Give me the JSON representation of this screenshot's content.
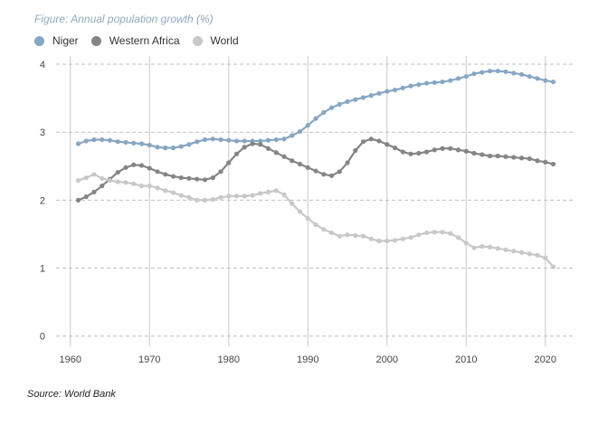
{
  "chart_data": {
    "type": "line",
    "title": "Figure: Annual population growth (%)",
    "source": "Source: World Bank",
    "xlim": [
      1961,
      2021
    ],
    "ylim": [
      0,
      4
    ],
    "x_ticks": [
      1960,
      1970,
      1980,
      1990,
      2000,
      2010,
      2020
    ],
    "y_ticks": [
      0,
      1,
      2,
      3,
      4
    ],
    "grid": true,
    "legend_position": "top-left",
    "x": [
      1961,
      1962,
      1963,
      1964,
      1965,
      1966,
      1967,
      1968,
      1969,
      1970,
      1971,
      1972,
      1973,
      1974,
      1975,
      1976,
      1977,
      1978,
      1979,
      1980,
      1981,
      1982,
      1983,
      1984,
      1985,
      1986,
      1987,
      1988,
      1989,
      1990,
      1991,
      1992,
      1993,
      1994,
      1995,
      1996,
      1997,
      1998,
      1999,
      2000,
      2001,
      2002,
      2003,
      2004,
      2005,
      2006,
      2007,
      2008,
      2009,
      2010,
      2011,
      2012,
      2013,
      2014,
      2015,
      2016,
      2017,
      2018,
      2019,
      2020,
      2021
    ],
    "series": [
      {
        "name": "Niger",
        "color": "#86a7c3",
        "values": [
          2.83,
          2.87,
          2.89,
          2.89,
          2.88,
          2.86,
          2.85,
          2.84,
          2.83,
          2.81,
          2.78,
          2.77,
          2.77,
          2.79,
          2.82,
          2.86,
          2.89,
          2.9,
          2.89,
          2.88,
          2.87,
          2.87,
          2.87,
          2.87,
          2.88,
          2.89,
          2.9,
          2.95,
          3.01,
          3.1,
          3.2,
          3.29,
          3.36,
          3.41,
          3.45,
          3.48,
          3.51,
          3.54,
          3.57,
          3.6,
          3.62,
          3.65,
          3.68,
          3.7,
          3.72,
          3.73,
          3.74,
          3.76,
          3.79,
          3.82,
          3.86,
          3.88,
          3.9,
          3.9,
          3.89,
          3.87,
          3.85,
          3.82,
          3.79,
          3.76,
          3.74
        ]
      },
      {
        "name": "Western Africa",
        "color": "#858585",
        "values": [
          2.0,
          2.05,
          2.12,
          2.21,
          2.31,
          2.41,
          2.48,
          2.52,
          2.51,
          2.47,
          2.42,
          2.38,
          2.35,
          2.33,
          2.32,
          2.31,
          2.3,
          2.33,
          2.42,
          2.55,
          2.68,
          2.78,
          2.83,
          2.82,
          2.76,
          2.7,
          2.64,
          2.58,
          2.53,
          2.48,
          2.43,
          2.38,
          2.36,
          2.42,
          2.55,
          2.73,
          2.86,
          2.9,
          2.87,
          2.82,
          2.77,
          2.71,
          2.68,
          2.69,
          2.71,
          2.74,
          2.76,
          2.76,
          2.74,
          2.72,
          2.69,
          2.67,
          2.65,
          2.65,
          2.64,
          2.63,
          2.62,
          2.61,
          2.58,
          2.56,
          2.53
        ]
      },
      {
        "name": "World",
        "color": "#c8c8c8",
        "values": [
          2.29,
          2.33,
          2.38,
          2.32,
          2.29,
          2.27,
          2.26,
          2.24,
          2.21,
          2.21,
          2.18,
          2.14,
          2.11,
          2.07,
          2.04,
          2.0,
          2.0,
          2.01,
          2.04,
          2.06,
          2.06,
          2.06,
          2.07,
          2.1,
          2.12,
          2.14,
          2.08,
          1.95,
          1.83,
          1.73,
          1.64,
          1.57,
          1.52,
          1.47,
          1.49,
          1.48,
          1.47,
          1.43,
          1.4,
          1.4,
          1.41,
          1.43,
          1.45,
          1.49,
          1.52,
          1.53,
          1.53,
          1.51,
          1.45,
          1.37,
          1.3,
          1.32,
          1.31,
          1.29,
          1.27,
          1.25,
          1.23,
          1.21,
          1.19,
          1.15,
          1.02
        ]
      }
    ]
  }
}
